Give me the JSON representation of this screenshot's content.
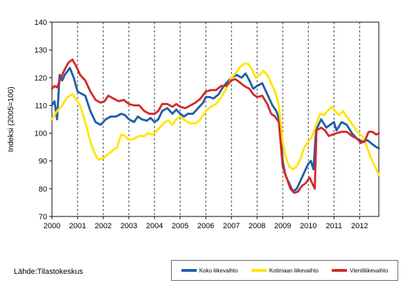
{
  "chart_data": {
    "type": "line",
    "title": "",
    "xlabel": "",
    "ylabel": "Indeksi (2005=100)",
    "ylim": [
      70,
      140
    ],
    "yticks": [
      70,
      80,
      90,
      100,
      110,
      120,
      130,
      140
    ],
    "xlim": [
      2000.0,
      2012.75
    ],
    "xticks": [
      "2000",
      "2001",
      "2002",
      "2003",
      "2004",
      "2005",
      "2006",
      "2007",
      "2008",
      "2009",
      "2010",
      "2011",
      "2012"
    ],
    "grid": "vertical-dashed",
    "legend_position": "bottom-right",
    "series": [
      {
        "name": "Koko liikevaihto",
        "color": "#1f5fa8",
        "points": [
          [
            2000.0,
            110
          ],
          [
            2000.1,
            111.5
          ],
          [
            2000.2,
            105
          ],
          [
            2000.3,
            121
          ],
          [
            2000.4,
            119
          ],
          [
            2000.5,
            121
          ],
          [
            2000.7,
            123.5
          ],
          [
            2000.85,
            120
          ],
          [
            2001.0,
            115
          ],
          [
            2001.3,
            113.5
          ],
          [
            2001.5,
            108
          ],
          [
            2001.7,
            104
          ],
          [
            2001.9,
            103
          ],
          [
            2002.1,
            105
          ],
          [
            2002.3,
            106
          ],
          [
            2002.5,
            106
          ],
          [
            2002.7,
            107
          ],
          [
            2002.85,
            106.5
          ],
          [
            2003.0,
            105
          ],
          [
            2003.2,
            104
          ],
          [
            2003.35,
            106
          ],
          [
            2003.5,
            105
          ],
          [
            2003.7,
            104.5
          ],
          [
            2003.85,
            105.5
          ],
          [
            2004.0,
            104
          ],
          [
            2004.15,
            105
          ],
          [
            2004.3,
            108
          ],
          [
            2004.5,
            109
          ],
          [
            2004.7,
            107
          ],
          [
            2004.85,
            108.5
          ],
          [
            2005.0,
            107
          ],
          [
            2005.15,
            106
          ],
          [
            2005.3,
            107
          ],
          [
            2005.5,
            107
          ],
          [
            2005.7,
            109
          ],
          [
            2005.9,
            111
          ],
          [
            2006.0,
            113
          ],
          [
            2006.15,
            113
          ],
          [
            2006.3,
            112.5
          ],
          [
            2006.5,
            114
          ],
          [
            2006.7,
            117
          ],
          [
            2006.9,
            119
          ],
          [
            2007.0,
            120
          ],
          [
            2007.2,
            121
          ],
          [
            2007.4,
            120
          ],
          [
            2007.55,
            121.5
          ],
          [
            2007.7,
            119
          ],
          [
            2007.85,
            116
          ],
          [
            2008.0,
            117
          ],
          [
            2008.2,
            118
          ],
          [
            2008.4,
            114
          ],
          [
            2008.6,
            110
          ],
          [
            2008.75,
            108
          ],
          [
            2008.9,
            104
          ],
          [
            2009.0,
            90
          ],
          [
            2009.1,
            85
          ],
          [
            2009.25,
            82
          ],
          [
            2009.4,
            79
          ],
          [
            2009.55,
            80
          ],
          [
            2009.7,
            83
          ],
          [
            2009.85,
            86
          ],
          [
            2010.0,
            89
          ],
          [
            2010.1,
            90
          ],
          [
            2010.2,
            87
          ],
          [
            2010.3,
            101
          ],
          [
            2010.5,
            105
          ],
          [
            2010.7,
            102
          ],
          [
            2010.85,
            103
          ],
          [
            2011.0,
            104
          ],
          [
            2011.1,
            101
          ],
          [
            2011.3,
            104
          ],
          [
            2011.5,
            103
          ],
          [
            2011.7,
            100
          ],
          [
            2011.9,
            98
          ],
          [
            2012.1,
            97
          ],
          [
            2012.3,
            97.5
          ],
          [
            2012.5,
            96
          ],
          [
            2012.65,
            95
          ],
          [
            2012.75,
            94.5
          ]
        ]
      },
      {
        "name": "Kotimaan liikevaihto",
        "color": "#ffe600",
        "points": [
          [
            2000.0,
            105
          ],
          [
            2000.2,
            108
          ],
          [
            2000.4,
            110
          ],
          [
            2000.6,
            113
          ],
          [
            2000.8,
            114
          ],
          [
            2000.95,
            112
          ],
          [
            2001.1,
            110
          ],
          [
            2001.3,
            104
          ],
          [
            2001.5,
            97
          ],
          [
            2001.65,
            93
          ],
          [
            2001.8,
            90.5
          ],
          [
            2002.0,
            91
          ],
          [
            2002.2,
            92.5
          ],
          [
            2002.4,
            94
          ],
          [
            2002.55,
            95
          ],
          [
            2002.7,
            99.5
          ],
          [
            2002.85,
            99
          ],
          [
            2003.0,
            97.5
          ],
          [
            2003.2,
            98
          ],
          [
            2003.4,
            99
          ],
          [
            2003.6,
            99
          ],
          [
            2003.75,
            100
          ],
          [
            2003.9,
            99.5
          ],
          [
            2004.0,
            100
          ],
          [
            2004.2,
            102
          ],
          [
            2004.4,
            104
          ],
          [
            2004.55,
            104.5
          ],
          [
            2004.7,
            103
          ],
          [
            2004.85,
            105
          ],
          [
            2005.0,
            106
          ],
          [
            2005.2,
            104.5
          ],
          [
            2005.4,
            103.5
          ],
          [
            2005.6,
            103.5
          ],
          [
            2005.8,
            105
          ],
          [
            2006.0,
            108
          ],
          [
            2006.2,
            109.5
          ],
          [
            2006.4,
            110.5
          ],
          [
            2006.6,
            113
          ],
          [
            2006.8,
            116
          ],
          [
            2007.0,
            120
          ],
          [
            2007.2,
            122
          ],
          [
            2007.35,
            124
          ],
          [
            2007.5,
            125
          ],
          [
            2007.65,
            125
          ],
          [
            2007.8,
            123
          ],
          [
            2007.95,
            120
          ],
          [
            2008.1,
            121
          ],
          [
            2008.25,
            122.5
          ],
          [
            2008.4,
            121
          ],
          [
            2008.55,
            118
          ],
          [
            2008.7,
            115
          ],
          [
            2008.85,
            110
          ],
          [
            2009.0,
            97
          ],
          [
            2009.1,
            92
          ],
          [
            2009.25,
            88
          ],
          [
            2009.4,
            87
          ],
          [
            2009.55,
            88
          ],
          [
            2009.7,
            91
          ],
          [
            2009.85,
            95
          ],
          [
            2010.0,
            97
          ],
          [
            2010.15,
            99
          ],
          [
            2010.3,
            103
          ],
          [
            2010.45,
            107
          ],
          [
            2010.6,
            106.5
          ],
          [
            2010.75,
            108
          ],
          [
            2010.9,
            109.5
          ],
          [
            2011.05,
            108
          ],
          [
            2011.2,
            106.5
          ],
          [
            2011.35,
            108
          ],
          [
            2011.5,
            106
          ],
          [
            2011.65,
            104
          ],
          [
            2011.8,
            102
          ],
          [
            2011.95,
            100
          ],
          [
            2012.1,
            99
          ],
          [
            2012.25,
            96
          ],
          [
            2012.4,
            92
          ],
          [
            2012.55,
            89
          ],
          [
            2012.7,
            86
          ],
          [
            2012.75,
            85
          ]
        ]
      },
      {
        "name": "Vientiliikevaihto",
        "color": "#d42a2a",
        "points": [
          [
            2000.0,
            116
          ],
          [
            2000.1,
            117
          ],
          [
            2000.2,
            116.5
          ],
          [
            2000.35,
            120
          ],
          [
            2000.5,
            123
          ],
          [
            2000.65,
            125.5
          ],
          [
            2000.8,
            126.5
          ],
          [
            2000.95,
            124
          ],
          [
            2001.1,
            121
          ],
          [
            2001.3,
            119
          ],
          [
            2001.5,
            115
          ],
          [
            2001.7,
            112
          ],
          [
            2001.9,
            111
          ],
          [
            2002.05,
            111.5
          ],
          [
            2002.2,
            113.5
          ],
          [
            2002.4,
            112.5
          ],
          [
            2002.6,
            111.5
          ],
          [
            2002.8,
            112
          ],
          [
            2003.0,
            110.5
          ],
          [
            2003.2,
            110
          ],
          [
            2003.4,
            110
          ],
          [
            2003.6,
            108
          ],
          [
            2003.8,
            107
          ],
          [
            2004.0,
            107
          ],
          [
            2004.15,
            108
          ],
          [
            2004.3,
            110.5
          ],
          [
            2004.5,
            110.5
          ],
          [
            2004.7,
            109.5
          ],
          [
            2004.85,
            110.5
          ],
          [
            2005.0,
            109.5
          ],
          [
            2005.2,
            109
          ],
          [
            2005.4,
            110
          ],
          [
            2005.6,
            111
          ],
          [
            2005.8,
            112.5
          ],
          [
            2006.0,
            115
          ],
          [
            2006.2,
            115.5
          ],
          [
            2006.4,
            115.5
          ],
          [
            2006.6,
            117
          ],
          [
            2006.8,
            117
          ],
          [
            2007.0,
            119
          ],
          [
            2007.15,
            119.5
          ],
          [
            2007.3,
            118.5
          ],
          [
            2007.5,
            117
          ],
          [
            2007.7,
            116
          ],
          [
            2007.85,
            114
          ],
          [
            2008.0,
            113
          ],
          [
            2008.2,
            113.5
          ],
          [
            2008.4,
            110.5
          ],
          [
            2008.55,
            107
          ],
          [
            2008.7,
            106
          ],
          [
            2008.85,
            104
          ],
          [
            2009.0,
            88
          ],
          [
            2009.15,
            84
          ],
          [
            2009.3,
            80
          ],
          [
            2009.45,
            78.5
          ],
          [
            2009.6,
            79
          ],
          [
            2009.75,
            81
          ],
          [
            2009.9,
            82
          ],
          [
            2010.05,
            84
          ],
          [
            2010.15,
            82
          ],
          [
            2010.25,
            80
          ],
          [
            2010.32,
            101
          ],
          [
            2010.5,
            102
          ],
          [
            2010.65,
            101
          ],
          [
            2010.8,
            99
          ],
          [
            2010.95,
            99.5
          ],
          [
            2011.1,
            100
          ],
          [
            2011.3,
            100.5
          ],
          [
            2011.5,
            100.5
          ],
          [
            2011.7,
            99
          ],
          [
            2011.9,
            98
          ],
          [
            2012.05,
            96.5
          ],
          [
            2012.2,
            97
          ],
          [
            2012.35,
            100.5
          ],
          [
            2012.5,
            100.5
          ],
          [
            2012.65,
            99.5
          ],
          [
            2012.75,
            100
          ]
        ]
      }
    ]
  },
  "source_text": "Lähde:Tilastokeskus"
}
